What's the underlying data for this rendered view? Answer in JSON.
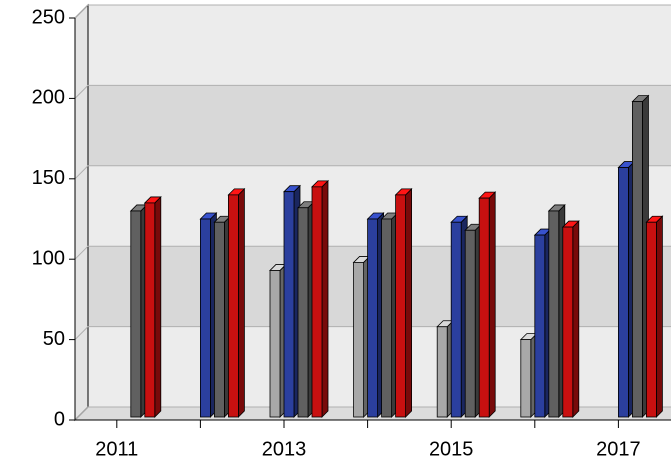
{
  "chart_data": {
    "type": "bar3d",
    "categories": [
      "2011",
      null,
      "2013",
      null,
      "2015",
      null,
      "2017"
    ],
    "series": [
      {
        "color": "#a8a8a8",
        "values": [
          null,
          null,
          93,
          98,
          58,
          50,
          null
        ]
      },
      {
        "color": "#2b3f9e",
        "values": [
          null,
          125,
          142,
          125,
          123,
          115,
          157
        ]
      },
      {
        "color": "#606060",
        "values": [
          130,
          123,
          132,
          125,
          118,
          130,
          198
        ]
      },
      {
        "color": "#c81010",
        "values": [
          135,
          140,
          145,
          140,
          138,
          120,
          123
        ]
      }
    ],
    "ylim": [
      0,
      250
    ],
    "yticks": [
      0,
      50,
      100,
      150,
      200,
      250
    ],
    "grid": true
  }
}
